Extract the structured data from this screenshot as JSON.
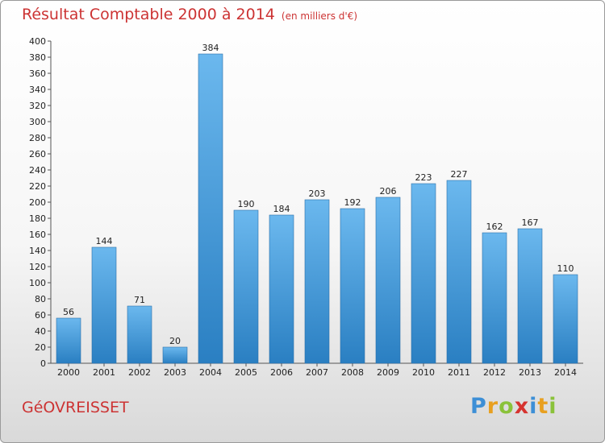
{
  "header": {
    "title": "Résultat Comptable 2000 à 2014",
    "unit": "(en milliers d'€)"
  },
  "footer": {
    "commune": "GéOVREISSET",
    "logo_text": "Proxiti"
  },
  "colors": {
    "title": "#cc3333",
    "bar_top": "#6bb8ee",
    "bar_bottom": "#2a7fc2"
  },
  "chart_data": {
    "type": "bar",
    "title": "Résultat Comptable 2000 à 2014",
    "ylabel": "en milliers d'€",
    "categories": [
      "2000",
      "2001",
      "2002",
      "2003",
      "2004",
      "2005",
      "2006",
      "2007",
      "2008",
      "2009",
      "2010",
      "2011",
      "2012",
      "2013",
      "2014"
    ],
    "values": [
      56,
      144,
      71,
      20,
      384,
      190,
      184,
      203,
      192,
      206,
      223,
      227,
      162,
      167,
      110
    ],
    "ylim": [
      0,
      400
    ],
    "yticks": [
      0,
      20,
      40,
      60,
      80,
      100,
      120,
      140,
      160,
      180,
      200,
      220,
      240,
      260,
      280,
      300,
      320,
      340,
      360,
      380,
      400
    ],
    "grid": false
  }
}
